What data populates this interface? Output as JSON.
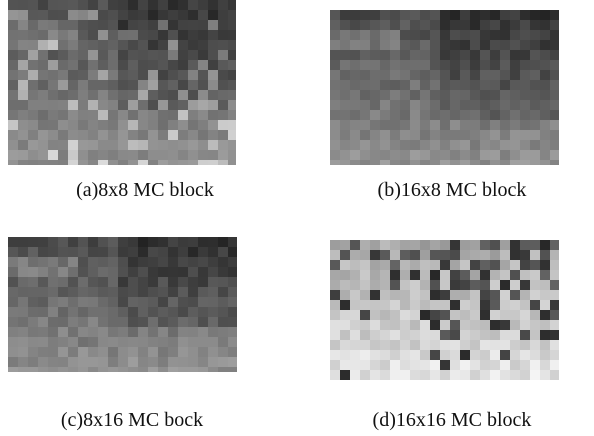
{
  "figure": {
    "panels": [
      {
        "caption": "(a)8x8 MC block"
      },
      {
        "caption": "(b)16x8 MC block"
      },
      {
        "caption": "(c)8x16 MC bock"
      },
      {
        "caption": "(d)16x16 MC block"
      }
    ]
  }
}
